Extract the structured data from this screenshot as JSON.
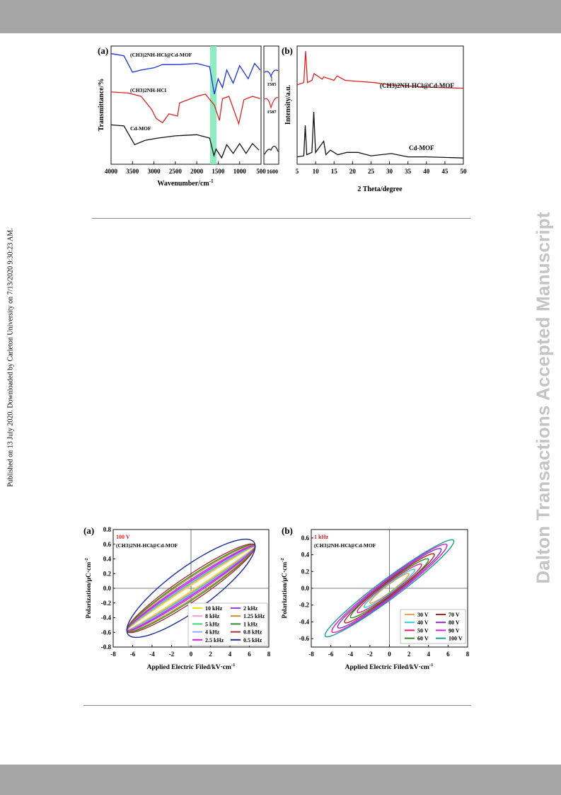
{
  "side_note": "Published on 13 July 2020. Downloaded by Carleton University on 7/13/2020 9:30:23 AM.",
  "watermark": "Dalton Transactions Accepted Manuscript",
  "colors": {
    "band": "#a6a6a6",
    "blue": "#1a2fd6",
    "red": "#dd2222",
    "black": "#111111",
    "highlight": "#7be8b5",
    "watermark": "#c4c4c4"
  },
  "figure1": {
    "panel_a": {
      "tag": "(a)",
      "ylabel": "Transmittance/%",
      "xlabel": "Wavenumber/cm",
      "xlabel_sup": "-1",
      "series_labels": [
        "(CH3)2NH-HCl@Cd-MOF",
        "(CH3)2NH-HCl",
        "Cd-MOF"
      ],
      "inset_labels": [
        "1585",
        "1587"
      ],
      "inset_tick": "1600"
    },
    "panel_b": {
      "tag": "(b)",
      "ylabel": "Intensity/a.u.",
      "xlabel": "2 Theta/degree",
      "series_labels": [
        "(CH3)2NH-HCl@Cd-MOF",
        "Cd-MOF"
      ]
    }
  },
  "figure2": {
    "panel_a": {
      "tag": "(a)",
      "condition": "100 V",
      "sample": "(CH3)2NH-HCl@Cd-MOF",
      "ylabel": "Polarization/μC·cm",
      "ylabel_sup": "-2",
      "xlabel": "Applied Electric Filed/kV·cm",
      "xlabel_sup": "-1",
      "legend": [
        {
          "label": "10 kHz",
          "color": "#f2e200"
        },
        {
          "label": "2 kHz",
          "color": "#9a3ce0"
        },
        {
          "label": "8 kHz",
          "color": "#f79ad7"
        },
        {
          "label": "1.25 kHz",
          "color": "#d08a2a"
        },
        {
          "label": "5 kHz",
          "color": "#3bd67a"
        },
        {
          "label": "1 kHz",
          "color": "#2f8a2f"
        },
        {
          "label": "4 kHz",
          "color": "#9aa8ff"
        },
        {
          "label": "0.8 kHz",
          "color": "#a83232"
        },
        {
          "label": "2.5 kHz",
          "color": "#e01ae0"
        },
        {
          "label": "0.5 kHz",
          "color": "#1a2a9a"
        }
      ]
    },
    "panel_b": {
      "tag": "(b)",
      "condition": "1 kHz",
      "sample": "(CH3)2NH-HCl@Cd-MOF",
      "ylabel": "Polarization/μC·cm",
      "ylabel_sup": "-2",
      "xlabel": "Applied Electric Filed/kV·cm",
      "xlabel_sup": "-1",
      "legend": [
        {
          "label": "30 V",
          "color": "#f0a040"
        },
        {
          "label": "70 V",
          "color": "#b02020"
        },
        {
          "label": "40 V",
          "color": "#30d0d0"
        },
        {
          "label": "80 V",
          "color": "#8030d0"
        },
        {
          "label": "50 V",
          "color": "#e01a8a"
        },
        {
          "label": "90 V",
          "color": "#d020d0"
        },
        {
          "label": "60 V",
          "color": "#2a8a2a"
        },
        {
          "label": "100 V",
          "color": "#1a9a9a"
        }
      ]
    }
  },
  "chart_data": [
    {
      "type": "line",
      "xlabel": "Wavenumber/cm-1",
      "ylabel": "Transmittance/%",
      "xlim": [
        4000,
        500
      ],
      "x_ticks": [
        4000,
        3500,
        3000,
        2500,
        2000,
        1500,
        1000,
        500
      ],
      "series": [
        {
          "name": "(CH3)2NH-HCl@Cd-MOF",
          "color": "#1a2fd6",
          "points": [
            [
              4000,
              0.97
            ],
            [
              3700,
              0.95
            ],
            [
              3500,
              0.8
            ],
            [
              3300,
              0.82
            ],
            [
              3000,
              0.84
            ],
            [
              2800,
              0.87
            ],
            [
              2400,
              0.87
            ],
            [
              2000,
              0.88
            ],
            [
              1700,
              0.85
            ],
            [
              1590,
              0.6
            ],
            [
              1500,
              0.74
            ],
            [
              1400,
              0.66
            ],
            [
              1300,
              0.82
            ],
            [
              1150,
              0.7
            ],
            [
              1000,
              0.86
            ],
            [
              800,
              0.74
            ],
            [
              650,
              0.88
            ],
            [
              520,
              0.82
            ]
          ]
        },
        {
          "name": "(CH3)2NH-HCl",
          "color": "#dd2222",
          "points": [
            [
              4000,
              0.62
            ],
            [
              3600,
              0.61
            ],
            [
              3300,
              0.58
            ],
            [
              3050,
              0.46
            ],
            [
              2950,
              0.38
            ],
            [
              2800,
              0.34
            ],
            [
              2650,
              0.42
            ],
            [
              2450,
              0.4
            ],
            [
              2400,
              0.52
            ],
            [
              2000,
              0.58
            ],
            [
              1800,
              0.6
            ],
            [
              1590,
              0.5
            ],
            [
              1470,
              0.36
            ],
            [
              1400,
              0.56
            ],
            [
              1250,
              0.58
            ],
            [
              1020,
              0.33
            ],
            [
              900,
              0.55
            ],
            [
              700,
              0.58
            ],
            [
              520,
              0.56
            ]
          ]
        },
        {
          "name": "Cd-MOF",
          "color": "#111111",
          "points": [
            [
              4000,
              0.32
            ],
            [
              3700,
              0.31
            ],
            [
              3450,
              0.14
            ],
            [
              3200,
              0.18
            ],
            [
              2900,
              0.2
            ],
            [
              2500,
              0.22
            ],
            [
              2000,
              0.23
            ],
            [
              1700,
              0.2
            ],
            [
              1600,
              0.04
            ],
            [
              1550,
              0.1
            ],
            [
              1420,
              0.02
            ],
            [
              1300,
              0.14
            ],
            [
              1150,
              0.06
            ],
            [
              1000,
              0.15
            ],
            [
              850,
              0.06
            ],
            [
              700,
              0.15
            ],
            [
              550,
              0.09
            ]
          ]
        }
      ]
    },
    {
      "type": "line",
      "xlabel": "2 Theta/degree",
      "ylabel": "Intensity/a.u.",
      "xlim": [
        5,
        50
      ],
      "x_ticks": [
        5,
        10,
        15,
        20,
        25,
        30,
        35,
        40,
        45,
        50
      ],
      "series": [
        {
          "name": "(CH3)2NH-HCl@Cd-MOF",
          "color": "#dd2222",
          "points": [
            [
              5,
              0.68
            ],
            [
              6.8,
              0.7
            ],
            [
              7.3,
              0.98
            ],
            [
              7.8,
              0.7
            ],
            [
              9,
              0.72
            ],
            [
              9.6,
              0.78
            ],
            [
              10.5,
              0.76
            ],
            [
              11.8,
              0.73
            ],
            [
              12.2,
              0.75
            ],
            [
              15,
              0.72
            ],
            [
              15.8,
              0.76
            ],
            [
              18,
              0.72
            ],
            [
              22,
              0.71
            ],
            [
              26,
              0.7
            ],
            [
              30,
              0.68
            ],
            [
              35,
              0.67
            ],
            [
              40,
              0.66
            ],
            [
              45,
              0.655
            ],
            [
              50,
              0.65
            ]
          ]
        },
        {
          "name": "Cd-MOF",
          "color": "#111111",
          "points": [
            [
              5,
              0.04
            ],
            [
              6.8,
              0.05
            ],
            [
              7.2,
              0.32
            ],
            [
              7.6,
              0.06
            ],
            [
              9,
              0.08
            ],
            [
              9.5,
              0.44
            ],
            [
              10,
              0.08
            ],
            [
              12.2,
              0.18
            ],
            [
              12.8,
              0.06
            ],
            [
              14,
              0.1
            ],
            [
              16,
              0.06
            ],
            [
              18.5,
              0.08
            ],
            [
              21.5,
              0.08
            ],
            [
              25,
              0.05
            ],
            [
              30.5,
              0.07
            ],
            [
              35,
              0.04
            ],
            [
              40,
              0.04
            ],
            [
              45,
              0.035
            ],
            [
              50,
              0.03
            ]
          ]
        }
      ]
    },
    {
      "type": "line",
      "title": "100 V",
      "xlabel": "Applied Electric Filed/kV·cm-1",
      "ylabel": "Polarization/μC·cm-2",
      "xlim": [
        -8,
        8
      ],
      "ylim": [
        -0.8,
        0.8
      ],
      "x_ticks": [
        -8,
        -6,
        -4,
        -2,
        0,
        2,
        4,
        6,
        8
      ],
      "y_ticks": [
        -0.8,
        -0.6,
        -0.4,
        -0.2,
        0.0,
        0.2,
        0.4,
        0.6,
        0.8
      ],
      "loop_tip": [
        6.6,
        0.57
      ],
      "series": [
        {
          "name": "10 kHz",
          "b": 0.04
        },
        {
          "name": "8 kHz",
          "b": 0.055
        },
        {
          "name": "5 kHz",
          "b": 0.07
        },
        {
          "name": "4 kHz",
          "b": 0.085
        },
        {
          "name": "2.5 kHz",
          "b": 0.1
        },
        {
          "name": "2 kHz",
          "b": 0.12
        },
        {
          "name": "1.25 kHz",
          "b": 0.15
        },
        {
          "name": "1 kHz",
          "b": 0.17
        },
        {
          "name": "0.8 kHz",
          "b": 0.2
        },
        {
          "name": "0.5 kHz",
          "b": 0.35
        }
      ]
    },
    {
      "type": "line",
      "title": "1 kHz",
      "xlabel": "Applied Electric Filed/kV·cm-1",
      "ylabel": "Polarization/μC·cm-2",
      "xlim": [
        -8,
        8
      ],
      "ylim": [
        -0.7,
        0.7
      ],
      "x_ticks": [
        -8,
        -6,
        -4,
        -2,
        0,
        2,
        4,
        6,
        8
      ],
      "y_ticks": [
        -0.6,
        -0.4,
        -0.2,
        0.0,
        0.2,
        0.4,
        0.6
      ],
      "series": [
        {
          "name": "30 V",
          "tip": [
            2.0,
            0.17
          ],
          "b": 0.05
        },
        {
          "name": "40 V",
          "tip": [
            2.6,
            0.22
          ],
          "b": 0.06
        },
        {
          "name": "50 V",
          "tip": [
            3.3,
            0.28
          ],
          "b": 0.075
        },
        {
          "name": "60 V",
          "tip": [
            4.0,
            0.34
          ],
          "b": 0.09
        },
        {
          "name": "70 V",
          "tip": [
            4.6,
            0.4
          ],
          "b": 0.1
        },
        {
          "name": "80 V",
          "tip": [
            5.3,
            0.46
          ],
          "b": 0.115
        },
        {
          "name": "90 V",
          "tip": [
            5.9,
            0.51
          ],
          "b": 0.13
        },
        {
          "name": "100 V",
          "tip": [
            6.6,
            0.56
          ],
          "b": 0.145
        }
      ]
    }
  ]
}
